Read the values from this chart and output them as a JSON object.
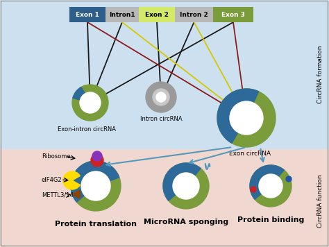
{
  "bg_top_color": "#cde0f0",
  "bg_bottom_color": "#f0d8d0",
  "exon1_color": "#2d5f8a",
  "intron1_color": "#b8b8b8",
  "exon2_color": "#d4e86a",
  "intron2_color": "#b8b8b8",
  "exon3_color": "#7a9c3a",
  "circ_outer_green": "#7a9c3a",
  "circ_inner_blue": "#2d6a9a",
  "circ_gray_outer": "#9a9a9a",
  "circ_gray_inner": "#c8c8c8",
  "label_exon_intron": "Exon-intron circRNA",
  "label_intron": "Intron circRNA",
  "label_exon": "Exon circRNA",
  "label_protein_trans": "Protein translation",
  "label_microrna": "MicroRNA sponging",
  "label_protein_bind": "Protein binding",
  "label_ribosome": "Ribosome",
  "label_eif4g2": "eIF4G2",
  "label_mettl": "METTL3/14",
  "label_circrna_form": "CircRNA formation",
  "label_circrna_func": "CircRNA function",
  "exon1_text": "Exon 1",
  "intron1_text": "Intron1",
  "exon2_text": "Exon 2",
  "intron2_text": "Intron 2",
  "exon3_text": "Exon 3",
  "line_black": "#1a1a1a",
  "line_yellow": "#d4c800",
  "line_darkred": "#8b1a1a",
  "arrow_blue": "#5599bb"
}
